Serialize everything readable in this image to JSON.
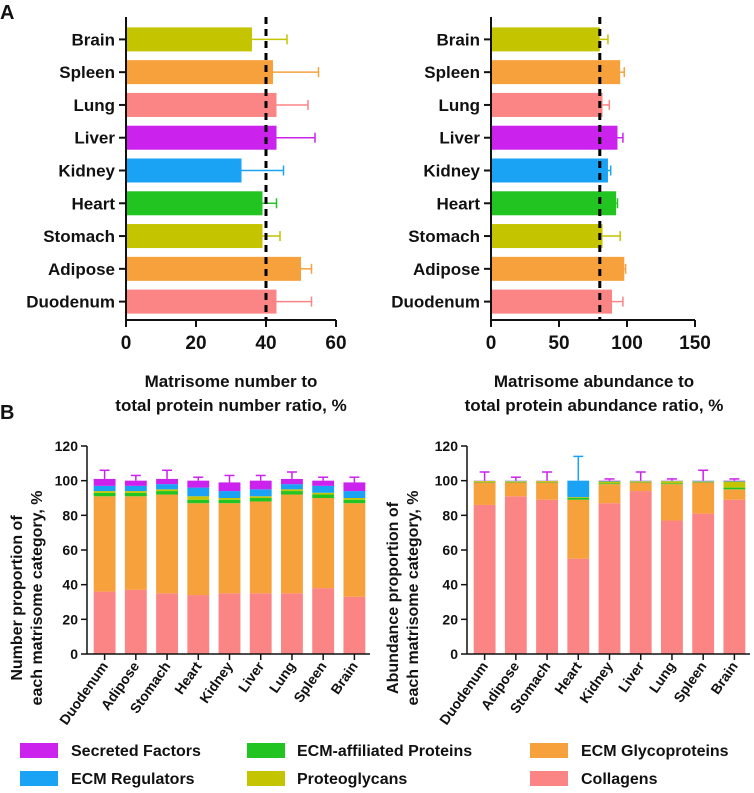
{
  "panel_labels": {
    "a": "A",
    "b": "B"
  },
  "colors": {
    "secreted": "#cc22ee",
    "affiliated": "#22c422",
    "glyco": "#f7a13d",
    "regulators": "#1aa3f5",
    "proteoglycans": "#c4c400",
    "collagens": "#fb8585",
    "refline": "#000000"
  },
  "legend": [
    {
      "label": "Secreted Factors",
      "color": "#cc22ee"
    },
    {
      "label": "ECM-affiliated Proteins",
      "color": "#22c422"
    },
    {
      "label": "ECM Glycoproteins",
      "color": "#f7a13d"
    },
    {
      "label": "ECM Regulators",
      "color": "#1aa3f5"
    },
    {
      "label": "Proteoglycans",
      "color": "#c4c400"
    },
    {
      "label": "Collagens",
      "color": "#fb8585"
    }
  ],
  "chart_data": [
    {
      "id": "a-left",
      "type": "bar",
      "orientation": "horizontal",
      "categories": [
        "Brain",
        "Spleen",
        "Lung",
        "Liver",
        "Kidney",
        "Heart",
        "Stomach",
        "Adipose",
        "Duodenum"
      ],
      "values": [
        36,
        42,
        43,
        43,
        33,
        39,
        39,
        50,
        43
      ],
      "errors": [
        10,
        13,
        9,
        11,
        12,
        4,
        5,
        3,
        10
      ],
      "bar_colors": [
        "#c4c400",
        "#f7a13d",
        "#fb8585",
        "#cc22ee",
        "#1aa3f5",
        "#22c422",
        "#c4c400",
        "#f7a13d",
        "#fb8585"
      ],
      "xlim": [
        0,
        60
      ],
      "xticks": [
        "0",
        "20",
        "40",
        "60"
      ],
      "reference_line": 40,
      "xlabel_line1": "Matrisome number to",
      "xlabel_line2": "total protein number ratio, %"
    },
    {
      "id": "a-right",
      "type": "bar",
      "orientation": "horizontal",
      "categories": [
        "Brain",
        "Spleen",
        "Lung",
        "Liver",
        "Kidney",
        "Heart",
        "Stomach",
        "Adipose",
        "Duodenum"
      ],
      "values": [
        80,
        95,
        82,
        93,
        86,
        92,
        82,
        98,
        89
      ],
      "errors": [
        6,
        3,
        5,
        4,
        2,
        1,
        13,
        1,
        8
      ],
      "bar_colors": [
        "#c4c400",
        "#f7a13d",
        "#fb8585",
        "#cc22ee",
        "#1aa3f5",
        "#22c422",
        "#c4c400",
        "#f7a13d",
        "#fb8585"
      ],
      "xlim": [
        0,
        150
      ],
      "xticks": [
        "0",
        "50",
        "100",
        "150"
      ],
      "reference_line": 80,
      "xlabel_line1": "Matrisome abundance to",
      "xlabel_line2": "total protein abundance ratio, %"
    },
    {
      "id": "b-left",
      "type": "bar",
      "stacked": true,
      "categories": [
        "Duodenum",
        "Adipose",
        "Stomach",
        "Heart",
        "Kidney",
        "Liver",
        "Lung",
        "Spleen",
        "Brain"
      ],
      "series": [
        {
          "name": "Collagens",
          "color": "#fb8585",
          "values": [
            36,
            37,
            35,
            34,
            35,
            35,
            35,
            38,
            33
          ]
        },
        {
          "name": "ECM Glycoproteins",
          "color": "#f7a13d",
          "values": [
            55,
            54,
            57,
            53,
            52,
            53,
            57,
            52,
            54
          ]
        },
        {
          "name": "ECM-affiliated Proteins",
          "color": "#22c422",
          "values": [
            2,
            2,
            2,
            2,
            2,
            2,
            2,
            2,
            2
          ]
        },
        {
          "name": "Proteoglycans",
          "color": "#c4c400",
          "values": [
            1,
            1,
            1,
            2,
            1,
            1,
            1,
            1,
            1
          ]
        },
        {
          "name": "ECM Regulators",
          "color": "#1aa3f5",
          "values": [
            3,
            3,
            3,
            5,
            4,
            4,
            3,
            4,
            4
          ]
        },
        {
          "name": "Secreted Factors",
          "color": "#cc22ee",
          "values": [
            4,
            3,
            3,
            4,
            5,
            5,
            3,
            3,
            5
          ]
        }
      ],
      "total_errors": [
        5,
        3,
        5,
        2,
        4,
        3,
        4,
        2,
        3
      ],
      "ylim": [
        0,
        120
      ],
      "yticks": [
        "0",
        "20",
        "40",
        "60",
        "80",
        "100",
        "120"
      ],
      "ylabel_line1": "Number proportion of",
      "ylabel_line2": "each matrisome category, %"
    },
    {
      "id": "b-right",
      "type": "bar",
      "stacked": true,
      "categories": [
        "Duodenum",
        "Adipose",
        "Stomach",
        "Heart",
        "Kidney",
        "Liver",
        "Lung",
        "Spleen",
        "Brain"
      ],
      "series": [
        {
          "name": "Collagens",
          "color": "#fb8585",
          "values": [
            86,
            91,
            89,
            55,
            87,
            94,
            77,
            81,
            89
          ]
        },
        {
          "name": "ECM Glycoproteins",
          "color": "#f7a13d",
          "values": [
            13,
            8,
            10,
            34,
            11,
            5,
            21,
            18,
            6
          ]
        },
        {
          "name": "ECM-affiliated Proteins",
          "color": "#22c422",
          "values": [
            0.3,
            0.3,
            0.3,
            1,
            0.5,
            0.3,
            0.5,
            0.3,
            1
          ]
        },
        {
          "name": "Proteoglycans",
          "color": "#c4c400",
          "values": [
            0.5,
            0.4,
            0.5,
            0.5,
            1,
            0.4,
            1.2,
            0.3,
            3.5
          ]
        },
        {
          "name": "ECM Regulators",
          "color": "#1aa3f5",
          "values": [
            0.1,
            0.2,
            0.1,
            9.5,
            0.3,
            0.2,
            0.2,
            0.3,
            0.3
          ]
        },
        {
          "name": "Secreted Factors",
          "color": "#cc22ee",
          "values": [
            0.1,
            0.1,
            0.1,
            0,
            0.2,
            0.1,
            0.1,
            0.1,
            0.2
          ]
        }
      ],
      "total_errors": [
        5,
        2,
        5,
        14,
        1,
        5,
        1,
        6,
        1
      ],
      "ylim": [
        0,
        120
      ],
      "yticks": [
        "0",
        "20",
        "40",
        "60",
        "80",
        "100",
        "120"
      ],
      "ylabel_line1": "Abundance proportion of",
      "ylabel_line2": "each matrisome category, %"
    }
  ]
}
